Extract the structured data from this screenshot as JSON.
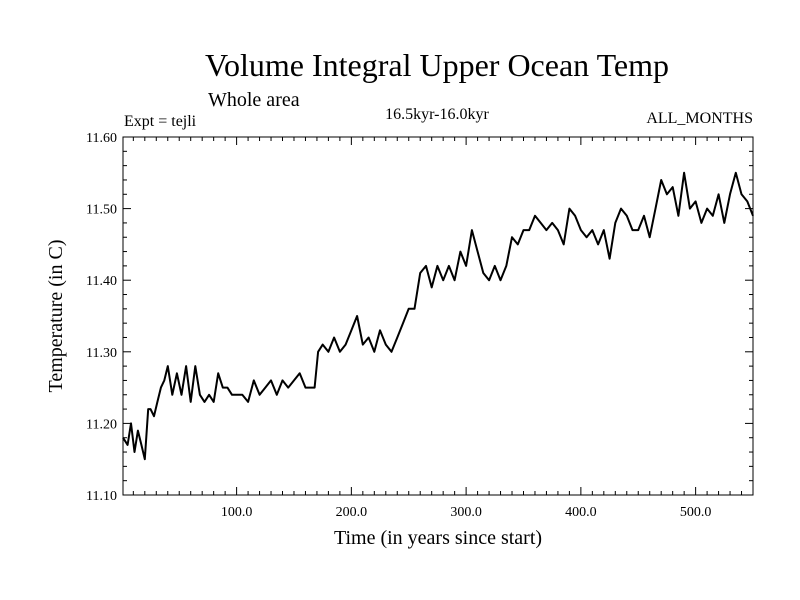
{
  "chart_data": {
    "type": "line",
    "title": "Volume Integral Upper Ocean Temp",
    "subtitle": "Whole area",
    "expt_label": "Expt = tejli",
    "period_label": "16.5kyr-16.0kyr",
    "months_label": "ALL_MONTHS",
    "xlabel": "Time (in years since start)",
    "ylabel": "Temperature (in C)",
    "xlim": [
      1,
      550
    ],
    "ylim": [
      11.1,
      11.6
    ],
    "xticks": [
      {
        "value": 100,
        "label": "100.0"
      },
      {
        "value": 200,
        "label": "200.0"
      },
      {
        "value": 300,
        "label": "300.0"
      },
      {
        "value": 400,
        "label": "400.0"
      },
      {
        "value": 500,
        "label": "500.0"
      }
    ],
    "yticks": [
      {
        "value": 11.1,
        "label": "11.10"
      },
      {
        "value": 11.2,
        "label": "11.20"
      },
      {
        "value": 11.3,
        "label": "11.30"
      },
      {
        "value": 11.4,
        "label": "11.40"
      },
      {
        "value": 11.5,
        "label": "11.50"
      },
      {
        "value": 11.6,
        "label": "11.60"
      }
    ],
    "grid": false,
    "series": [
      {
        "name": "Temperature",
        "x": [
          1,
          5,
          8,
          11,
          14,
          17,
          20,
          23,
          25,
          28,
          31,
          34,
          37,
          40,
          44,
          48,
          52,
          56,
          60,
          64,
          68,
          72,
          76,
          80,
          84,
          88,
          92,
          96,
          100,
          105,
          110,
          115,
          120,
          125,
          130,
          135,
          140,
          145,
          150,
          155,
          160,
          165,
          168,
          171,
          175,
          180,
          185,
          190,
          195,
          200,
          205,
          210,
          215,
          220,
          225,
          230,
          235,
          240,
          245,
          250,
          255,
          260,
          265,
          270,
          275,
          280,
          285,
          290,
          295,
          300,
          305,
          310,
          315,
          320,
          325,
          330,
          335,
          340,
          345,
          350,
          355,
          360,
          365,
          370,
          375,
          380,
          385,
          390,
          395,
          400,
          405,
          410,
          415,
          420,
          425,
          430,
          435,
          440,
          445,
          450,
          455,
          460,
          465,
          470,
          475,
          480,
          485,
          490,
          495,
          500,
          505,
          510,
          515,
          520,
          525,
          530,
          535,
          540,
          545,
          550
        ],
        "values": [
          11.18,
          11.17,
          11.2,
          11.16,
          11.19,
          11.17,
          11.15,
          11.22,
          11.22,
          11.21,
          11.23,
          11.25,
          11.26,
          11.28,
          11.24,
          11.27,
          11.24,
          11.28,
          11.23,
          11.28,
          11.24,
          11.23,
          11.24,
          11.23,
          11.27,
          11.25,
          11.25,
          11.24,
          11.24,
          11.24,
          11.23,
          11.26,
          11.24,
          11.25,
          11.26,
          11.24,
          11.26,
          11.25,
          11.26,
          11.27,
          11.25,
          11.25,
          11.25,
          11.3,
          11.31,
          11.3,
          11.32,
          11.3,
          11.31,
          11.33,
          11.35,
          11.31,
          11.32,
          11.3,
          11.33,
          11.31,
          11.3,
          11.32,
          11.34,
          11.36,
          11.36,
          11.41,
          11.42,
          11.39,
          11.42,
          11.4,
          11.42,
          11.4,
          11.44,
          11.42,
          11.47,
          11.44,
          11.41,
          11.4,
          11.42,
          11.4,
          11.42,
          11.46,
          11.45,
          11.47,
          11.47,
          11.49,
          11.48,
          11.47,
          11.48,
          11.47,
          11.45,
          11.5,
          11.49,
          11.47,
          11.46,
          11.47,
          11.45,
          11.47,
          11.43,
          11.48,
          11.5,
          11.49,
          11.47,
          11.47,
          11.49,
          11.46,
          11.5,
          11.54,
          11.52,
          11.53,
          11.49,
          11.55,
          11.5,
          11.51,
          11.48,
          11.5,
          11.49,
          11.52,
          11.48,
          11.52,
          11.55,
          11.52,
          11.51,
          11.49
        ]
      }
    ]
  }
}
